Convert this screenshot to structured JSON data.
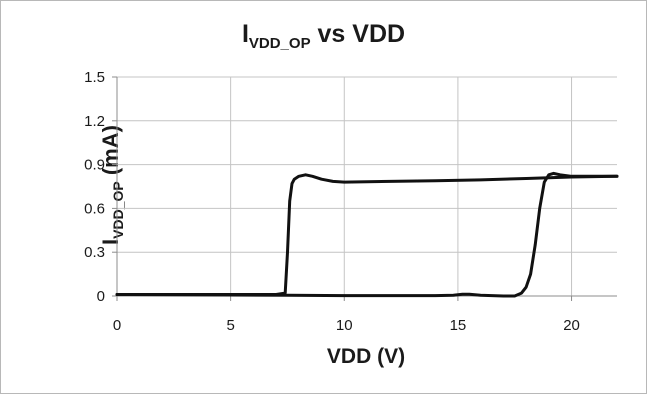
{
  "chart_data": {
    "type": "line",
    "title_main": "I",
    "title_sub": "VDD_OP",
    "title_rest": " vs VDD",
    "xlabel": "VDD (V)",
    "ylabel_main": "I",
    "ylabel_sub": "VDD_OP",
    "ylabel_rest": " (mA)",
    "xlim": [
      0,
      22
    ],
    "ylim": [
      0,
      1.5
    ],
    "xticks": [
      0,
      5,
      10,
      15,
      20
    ],
    "yticks": [
      "0",
      "0.3",
      "0.6",
      "0.9",
      "1.2",
      "1.5"
    ],
    "grid": true,
    "series": [
      {
        "x": [
          0,
          7.0,
          7.4,
          7.5,
          7.6,
          7.7,
          7.8,
          8.0,
          8.3,
          8.6,
          9.0,
          9.5,
          10.0,
          12,
          14,
          16,
          18,
          20,
          22
        ],
        "y": [
          0.01,
          0.01,
          0.02,
          0.3,
          0.65,
          0.77,
          0.8,
          0.82,
          0.83,
          0.82,
          0.8,
          0.785,
          0.78,
          0.785,
          0.79,
          0.795,
          0.805,
          0.815,
          0.82
        ]
      },
      {
        "x": [
          22,
          20,
          19.5,
          19.2,
          19.0,
          18.8,
          18.6,
          18.4,
          18.2,
          18.0,
          17.8,
          17.5,
          17.0,
          16.0,
          15.5,
          15.2,
          14.8,
          14.0,
          10,
          7.5,
          0
        ],
        "y": [
          0.82,
          0.82,
          0.83,
          0.84,
          0.83,
          0.78,
          0.6,
          0.35,
          0.15,
          0.06,
          0.02,
          0.0,
          0.0,
          0.005,
          0.012,
          0.012,
          0.005,
          0.003,
          0.003,
          0.005,
          0.01
        ]
      }
    ]
  },
  "chart_theme": {
    "line_color": "#111111",
    "grid_color": "#c4c4c4",
    "axis_color": "#8c8c8c"
  }
}
